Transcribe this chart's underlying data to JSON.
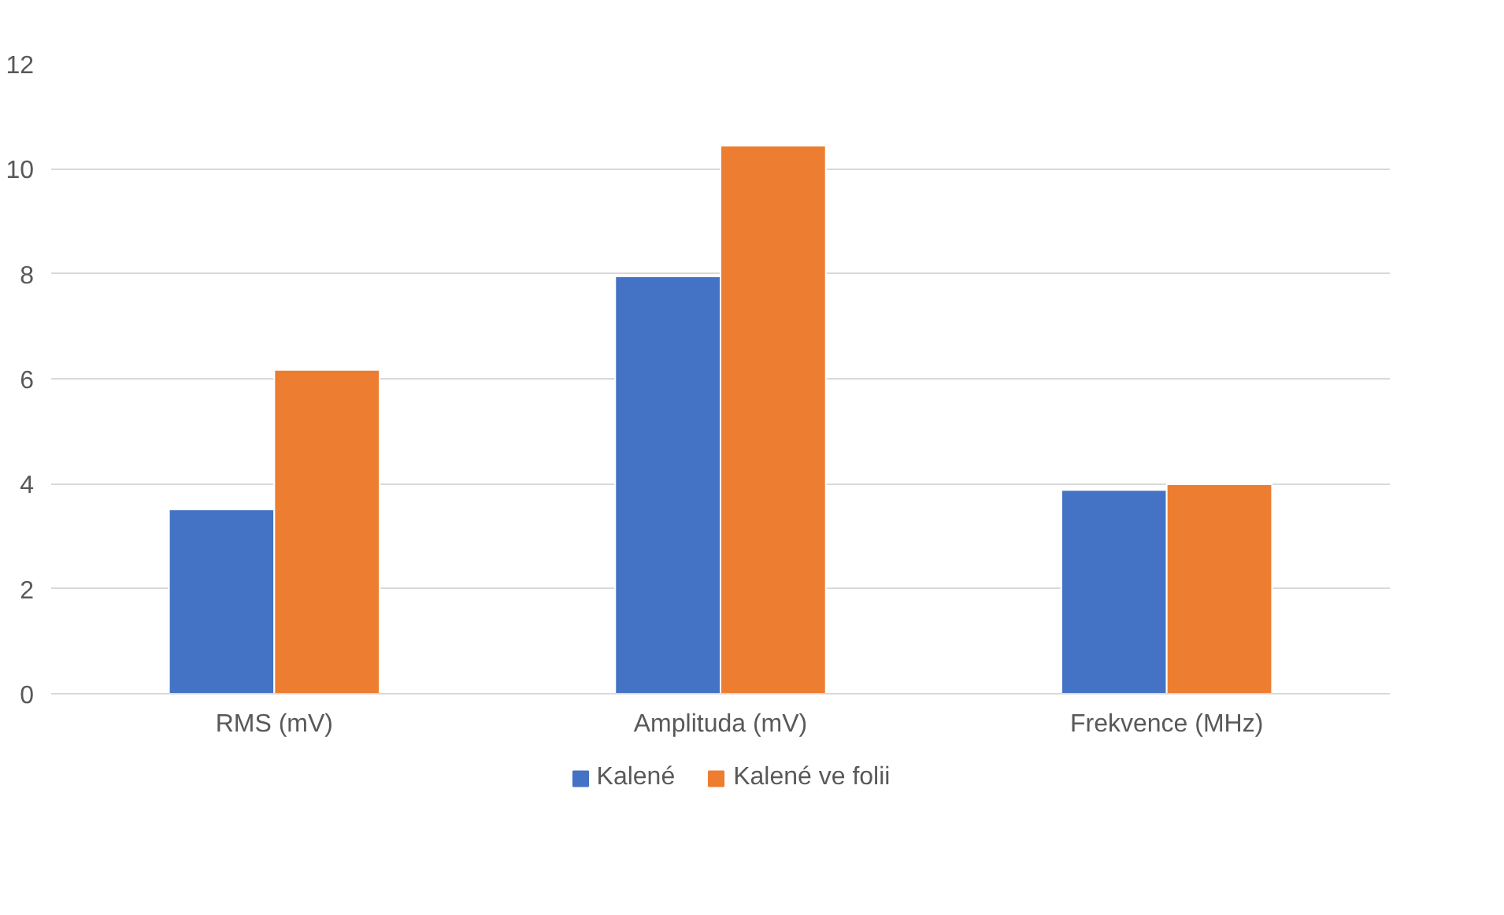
{
  "chart_data": {
    "type": "bar",
    "categories": [
      "RMS (mV)",
      "Amplituda (mV)",
      "Frekvence (MHz)"
    ],
    "series": [
      {
        "name": "Kalené",
        "color": "#4472c4",
        "values": [
          3.51,
          7.95,
          3.88
        ]
      },
      {
        "name": "Kalené ve folii",
        "color": "#ed7d31",
        "values": [
          6.17,
          10.44,
          3.99
        ]
      }
    ],
    "ylim": [
      0,
      12
    ],
    "yticks": [
      0,
      2,
      4,
      6,
      8,
      10,
      12
    ],
    "grid": "y",
    "legend": "bottom"
  }
}
